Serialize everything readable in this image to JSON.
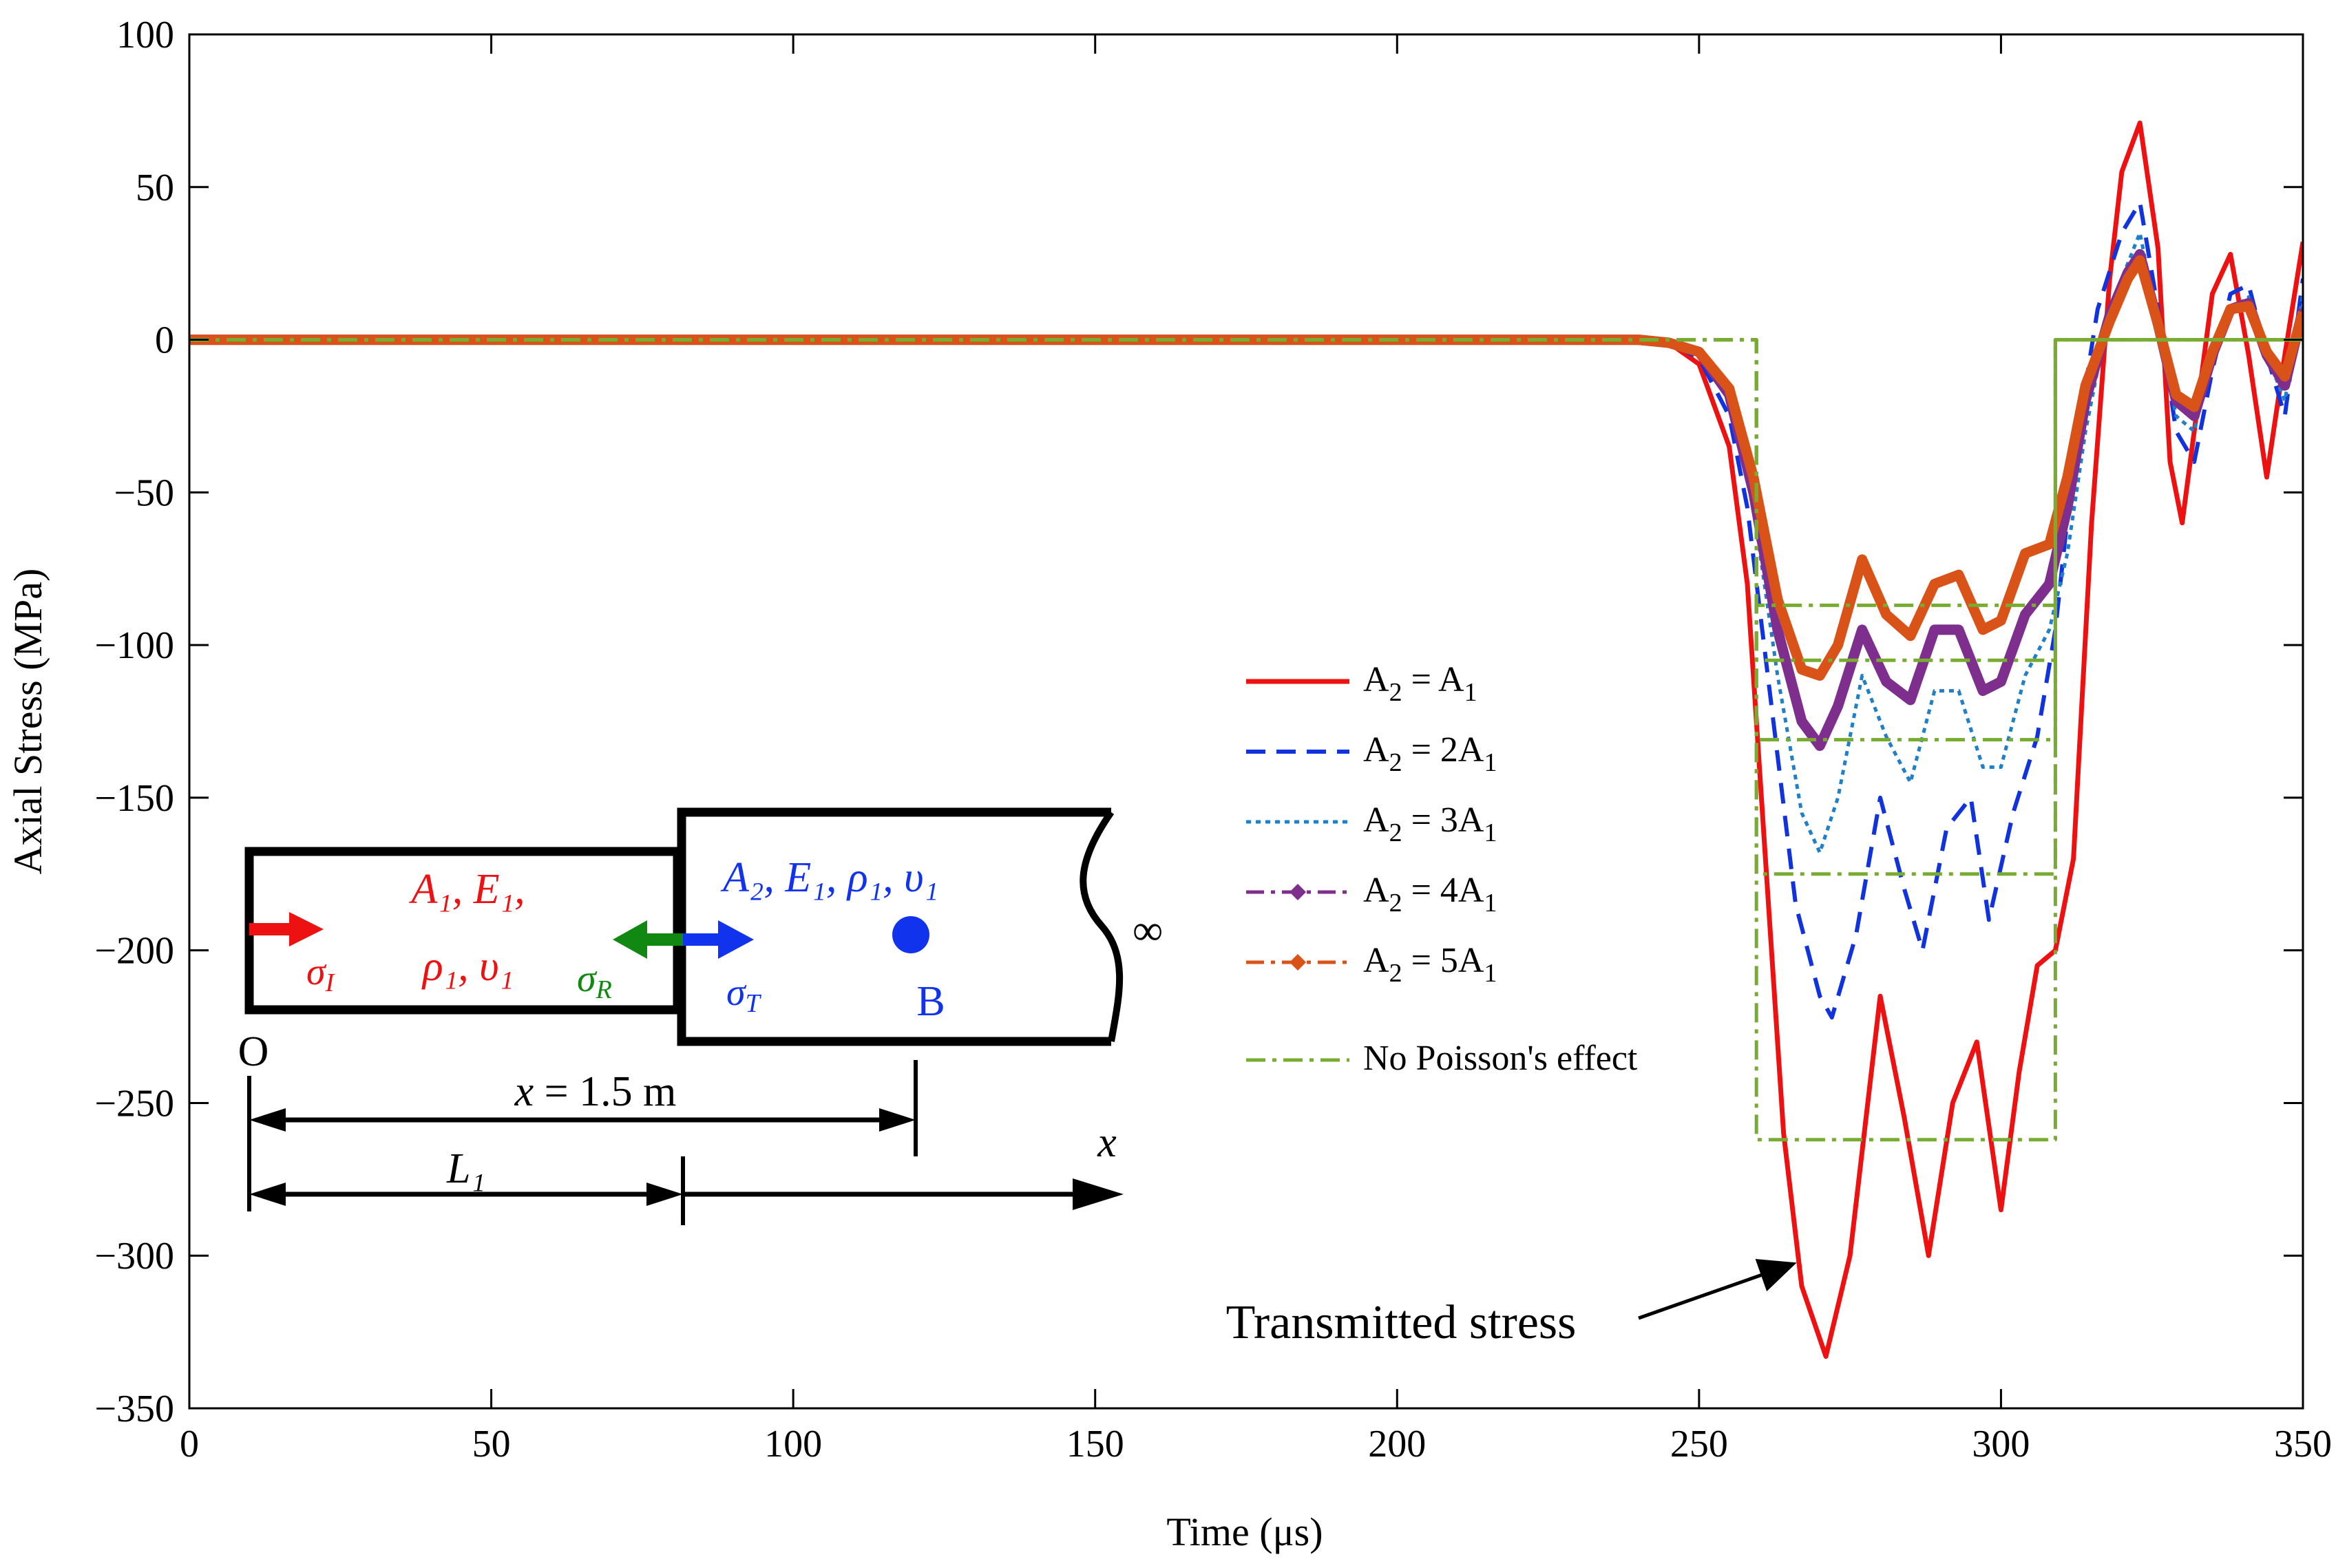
{
  "colors": {
    "red": "#ee1111",
    "blue": "#1133dd",
    "cyan": "#1f7fc8",
    "purple": "#7e2f8e",
    "orange": "#d95319",
    "green": "#77ac30",
    "arrow_green": "#118811",
    "arrow_blue": "#1133ee"
  },
  "chart_data": {
    "type": "line",
    "title": "",
    "xlabel": "Time (μs)",
    "ylabel": "Axial Stress (MPa)",
    "xlim": [
      0,
      350
    ],
    "ylim": [
      -350,
      100
    ],
    "xticks": [
      "0",
      "50",
      "100",
      "150",
      "200",
      "250",
      "300",
      "350"
    ],
    "yticks": [
      "100",
      "50",
      "0",
      "−50",
      "−100",
      "−150",
      "−200",
      "−250",
      "−300",
      "−350"
    ],
    "legend_position": "right-middle",
    "legend": [
      {
        "base": "A",
        "sub1": "2",
        "rel": " = ",
        "coef": "",
        "base2": "A",
        "sub2": "1",
        "style": "solid",
        "color": "#ee1111"
      },
      {
        "base": "A",
        "sub1": "2",
        "rel": " = ",
        "coef": "2",
        "base2": "A",
        "sub2": "1",
        "style": "dashed",
        "color": "#1133dd"
      },
      {
        "base": "A",
        "sub1": "2",
        "rel": " = ",
        "coef": "3",
        "base2": "A",
        "sub2": "1",
        "style": "dotted",
        "color": "#1f7fc8"
      },
      {
        "base": "A",
        "sub1": "2",
        "rel": " = ",
        "coef": "4",
        "base2": "A",
        "sub2": "1",
        "style": "dash-dot-marker",
        "color": "#7e2f8e"
      },
      {
        "base": "A",
        "sub1": "2",
        "rel": " = ",
        "coef": "5",
        "base2": "A",
        "sub2": "1",
        "style": "dash-dot-marker",
        "color": "#d95319"
      },
      {
        "text": "No Poisson's effect",
        "style": "dash-dot",
        "color": "#77ac30"
      }
    ],
    "series": [
      {
        "name": "A2 = A1",
        "color": "#ee1111",
        "width": 7,
        "dash": "",
        "x": [
          0,
          240,
          245,
          250,
          255,
          258,
          261,
          264,
          267,
          271,
          275,
          280,
          284,
          288,
          292,
          296,
          300,
          303,
          306,
          309,
          312,
          315,
          318,
          320,
          323,
          326,
          328,
          330,
          332,
          335,
          338,
          341,
          344,
          347,
          350
        ],
        "y": [
          0,
          0,
          -1,
          -8,
          -35,
          -80,
          -170,
          -260,
          -310,
          -333,
          -300,
          -215,
          -255,
          -300,
          -250,
          -230,
          -285,
          -240,
          -205,
          -200,
          -170,
          -60,
          20,
          55,
          71,
          30,
          -40,
          -60,
          -30,
          15,
          28,
          -5,
          -45,
          -5,
          32
        ]
      },
      {
        "name": "A2 = 2A1",
        "color": "#1133dd",
        "width": 6,
        "dash": "30,18",
        "x": [
          0,
          240,
          245,
          250,
          255,
          258,
          262,
          266,
          270,
          272,
          276,
          280,
          284,
          287,
          291,
          295,
          298,
          302,
          306,
          309,
          312,
          316,
          320,
          323,
          326,
          329,
          332,
          335,
          338,
          341,
          344,
          347,
          350
        ],
        "y": [
          0,
          0,
          -1,
          -6,
          -25,
          -55,
          -120,
          -185,
          -215,
          -222,
          -195,
          -150,
          -180,
          -200,
          -160,
          -150,
          -190,
          -155,
          -130,
          -95,
          -40,
          10,
          35,
          45,
          10,
          -30,
          -40,
          -10,
          15,
          18,
          -5,
          -25,
          20
        ]
      },
      {
        "name": "A2 = 3A1",
        "color": "#1f7fc8",
        "width": 5,
        "dash": "7,7",
        "x": [
          0,
          240,
          245,
          250,
          255,
          259,
          263,
          267,
          270,
          273,
          277,
          281,
          285,
          289,
          293,
          297,
          300,
          304,
          308,
          311,
          314,
          318,
          321,
          323,
          326,
          329,
          332,
          335,
          338,
          341,
          344,
          347,
          350
        ],
        "y": [
          0,
          0,
          -1,
          -5,
          -20,
          -55,
          -110,
          -155,
          -168,
          -150,
          -110,
          -130,
          -145,
          -115,
          -115,
          -140,
          -140,
          -110,
          -95,
          -70,
          -30,
          10,
          25,
          35,
          5,
          -25,
          -30,
          -5,
          10,
          14,
          -5,
          -20,
          15
        ]
      },
      {
        "name": "A2 = 4A1",
        "color": "#7e2f8e",
        "width": 15,
        "dash": "",
        "x": [
          0,
          240,
          245,
          250,
          255,
          259,
          263,
          267,
          270,
          273,
          277,
          281,
          285,
          289,
          293,
          297,
          300,
          304,
          308,
          311,
          314,
          318,
          321,
          323,
          326,
          329,
          332,
          335,
          338,
          341,
          344,
          347,
          350
        ],
        "y": [
          0,
          0,
          -1,
          -4,
          -18,
          -50,
          -95,
          -125,
          -133,
          -120,
          -95,
          -112,
          -118,
          -95,
          -95,
          -115,
          -112,
          -90,
          -80,
          -55,
          -20,
          8,
          22,
          28,
          5,
          -20,
          -25,
          -5,
          10,
          12,
          -5,
          -15,
          10
        ]
      },
      {
        "name": "A2 = 5A1",
        "color": "#d95319",
        "width": 15,
        "dash": "",
        "x": [
          0,
          240,
          245,
          250,
          255,
          259,
          263,
          267,
          270,
          273,
          277,
          281,
          285,
          289,
          293,
          297,
          300,
          304,
          308,
          311,
          314,
          318,
          321,
          323,
          326,
          329,
          332,
          335,
          338,
          341,
          344,
          347,
          350
        ],
        "y": [
          0,
          0,
          -1,
          -4,
          -16,
          -45,
          -85,
          -108,
          -110,
          -100,
          -72,
          -90,
          -97,
          -80,
          -77,
          -95,
          -92,
          -70,
          -67,
          -45,
          -15,
          6,
          20,
          26,
          5,
          -18,
          -22,
          -4,
          10,
          11,
          -4,
          -12,
          9
        ]
      },
      {
        "name": "No Poisson's effect (A2 = A1)",
        "color": "#77ac30",
        "width": 5,
        "dash": "28,10,6,10",
        "x": [
          0,
          259.5,
          259.5,
          309,
          309,
          350
        ],
        "y": [
          0,
          0,
          -262,
          -262,
          0,
          0
        ]
      },
      {
        "name": "No Poisson's effect (A2 = 2A1)",
        "color": "#77ac30",
        "width": 5,
        "dash": "28,10,6,10",
        "x": [
          0,
          259.5,
          259.5,
          309,
          309,
          350
        ],
        "y": [
          0,
          0,
          -175,
          -175,
          0,
          0
        ]
      },
      {
        "name": "No Poisson's effect (A2 = 3A1)",
        "color": "#77ac30",
        "width": 5,
        "dash": "28,10,6,10",
        "x": [
          0,
          259.5,
          259.5,
          309,
          309,
          350
        ],
        "y": [
          0,
          0,
          -131,
          -131,
          0,
          0
        ]
      },
      {
        "name": "No Poisson's effect (A2 = 4A1)",
        "color": "#77ac30",
        "width": 5,
        "dash": "28,10,6,10",
        "x": [
          0,
          259.5,
          259.5,
          309,
          309,
          350
        ],
        "y": [
          0,
          0,
          -105,
          -105,
          0,
          0
        ]
      },
      {
        "name": "No Poisson's effect (A2 = 5A1)",
        "color": "#77ac30",
        "width": 5,
        "dash": "28,10,6,10",
        "x": [
          0,
          259.5,
          259.5,
          309,
          309,
          350
        ],
        "y": [
          0,
          0,
          -87,
          -87,
          0,
          0
        ]
      }
    ],
    "annotation": {
      "text": "Transmitted stress",
      "arrow_to_x": 266,
      "arrow_to_y": -307
    }
  },
  "diagram": {
    "bar1_props_line1": "A₁, E₁,",
    "bar1_props_line2": "ρ₁, υ₁",
    "bar2_props": "A₂, E₁, ρ₁, υ₁",
    "sigma_I": "σI",
    "sigma_R": "σR",
    "sigma_T": "σT",
    "point_label": "B",
    "origin_label": "O",
    "distance_label": "x = 1.5 m",
    "length_label": "L₁",
    "axis_label": "x",
    "infinity": "∞"
  }
}
